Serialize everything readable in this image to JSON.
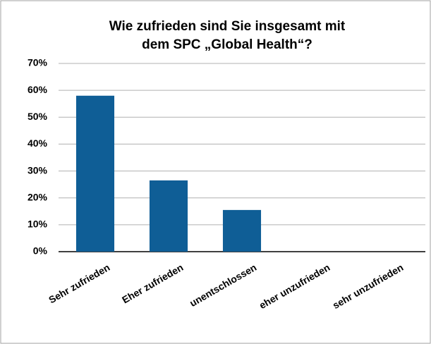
{
  "chart_data": {
    "type": "bar",
    "title": [
      "Wie zufrieden sind Sie insgesamt mit",
      "dem SPC „Global Health“?"
    ],
    "categories": [
      "Sehr zufrieden",
      "Eher zufrieden",
      "unentschlossen",
      "eher unzufrieden",
      "sehr unzufrieden"
    ],
    "values": [
      58,
      26.5,
      15.5,
      0,
      0
    ],
    "color": "#0f5e96",
    "ylim": [
      0,
      70
    ],
    "yticks": [
      {
        "value": 0,
        "label": "0%"
      },
      {
        "value": 10,
        "label": "10%"
      },
      {
        "value": 20,
        "label": "20%"
      },
      {
        "value": 30,
        "label": "30%"
      },
      {
        "value": 40,
        "label": "40%"
      },
      {
        "value": 50,
        "label": "50%"
      },
      {
        "value": 60,
        "label": "60%"
      },
      {
        "value": 70,
        "label": "70%"
      }
    ],
    "grid": true
  }
}
